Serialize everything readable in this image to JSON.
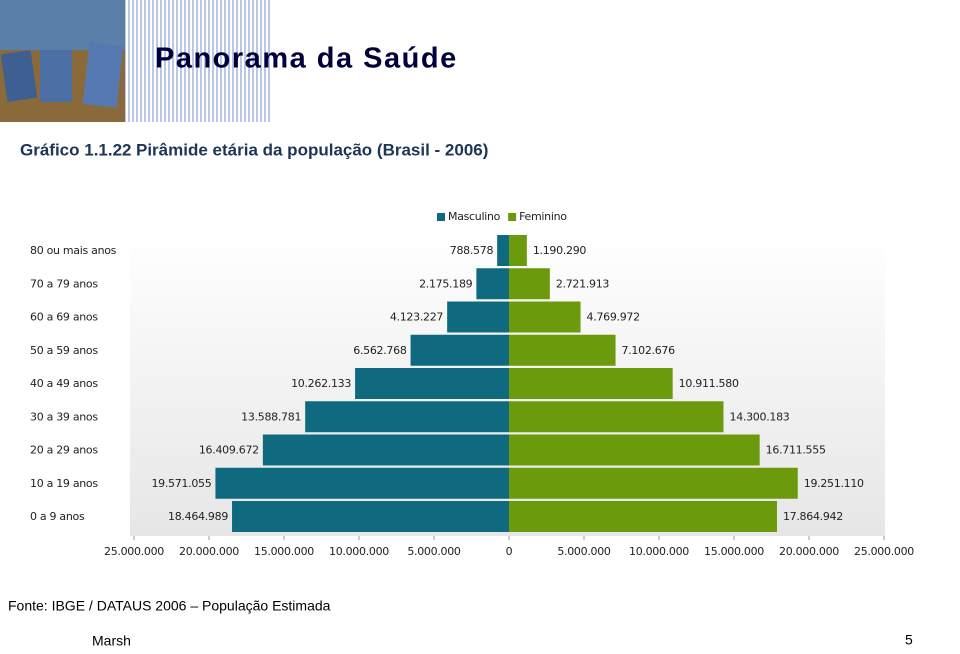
{
  "slide": {
    "title": "Panorama da Saúde",
    "figure_label": "Gráfico 1.1.22",
    "source": "Fonte: IBGE / DATAUS 2006 – População Estimada",
    "footer_left": "Marsh",
    "page_number": "5"
  },
  "chart_data": {
    "type": "pyramid",
    "title": "Pirâmide etária da população (Brasil - 2006)",
    "categories": [
      "80 ou mais anos",
      "70 a 79 anos",
      "60 a 69 anos",
      "50 a 59 anos",
      "40 a 49 anos",
      "30 a 39 anos",
      "20 a 29 anos",
      "10 a 19 anos",
      "0 a 9 anos"
    ],
    "series": [
      {
        "name": "Masculino",
        "color": "#0f6a80",
        "side": "left",
        "values": [
          788578,
          2175189,
          4123227,
          6562768,
          10262133,
          13588781,
          16409672,
          19571055,
          18464989
        ],
        "value_labels": [
          "788.578",
          "2.175.189",
          "4.123.227",
          "6.562.768",
          "10.262.133",
          "13.588.781",
          "16.409.672",
          "19.571.055",
          "18.464.989"
        ]
      },
      {
        "name": "Feminino",
        "color": "#6b9a0c",
        "side": "right",
        "values": [
          1190290,
          2721913,
          4769972,
          7102676,
          10911580,
          14300183,
          16711555,
          19251110,
          17864942
        ],
        "value_labels": [
          "1.190.290",
          "2.721.913",
          "4.769.972",
          "7.102.676",
          "10.911.580",
          "14.300.183",
          "16.711.555",
          "19.251.110",
          "17.864.942"
        ]
      }
    ],
    "xlim": [
      0,
      25000000
    ],
    "xticks": [
      {
        "value": 0,
        "label": "0"
      },
      {
        "value": 5000000,
        "label": "5.000.000"
      },
      {
        "value": 10000000,
        "label": "10.000.000"
      },
      {
        "value": 15000000,
        "label": "15.000.000"
      },
      {
        "value": 20000000,
        "label": "20.000.000"
      },
      {
        "value": 25000000,
        "label": "25.000.000"
      }
    ]
  }
}
